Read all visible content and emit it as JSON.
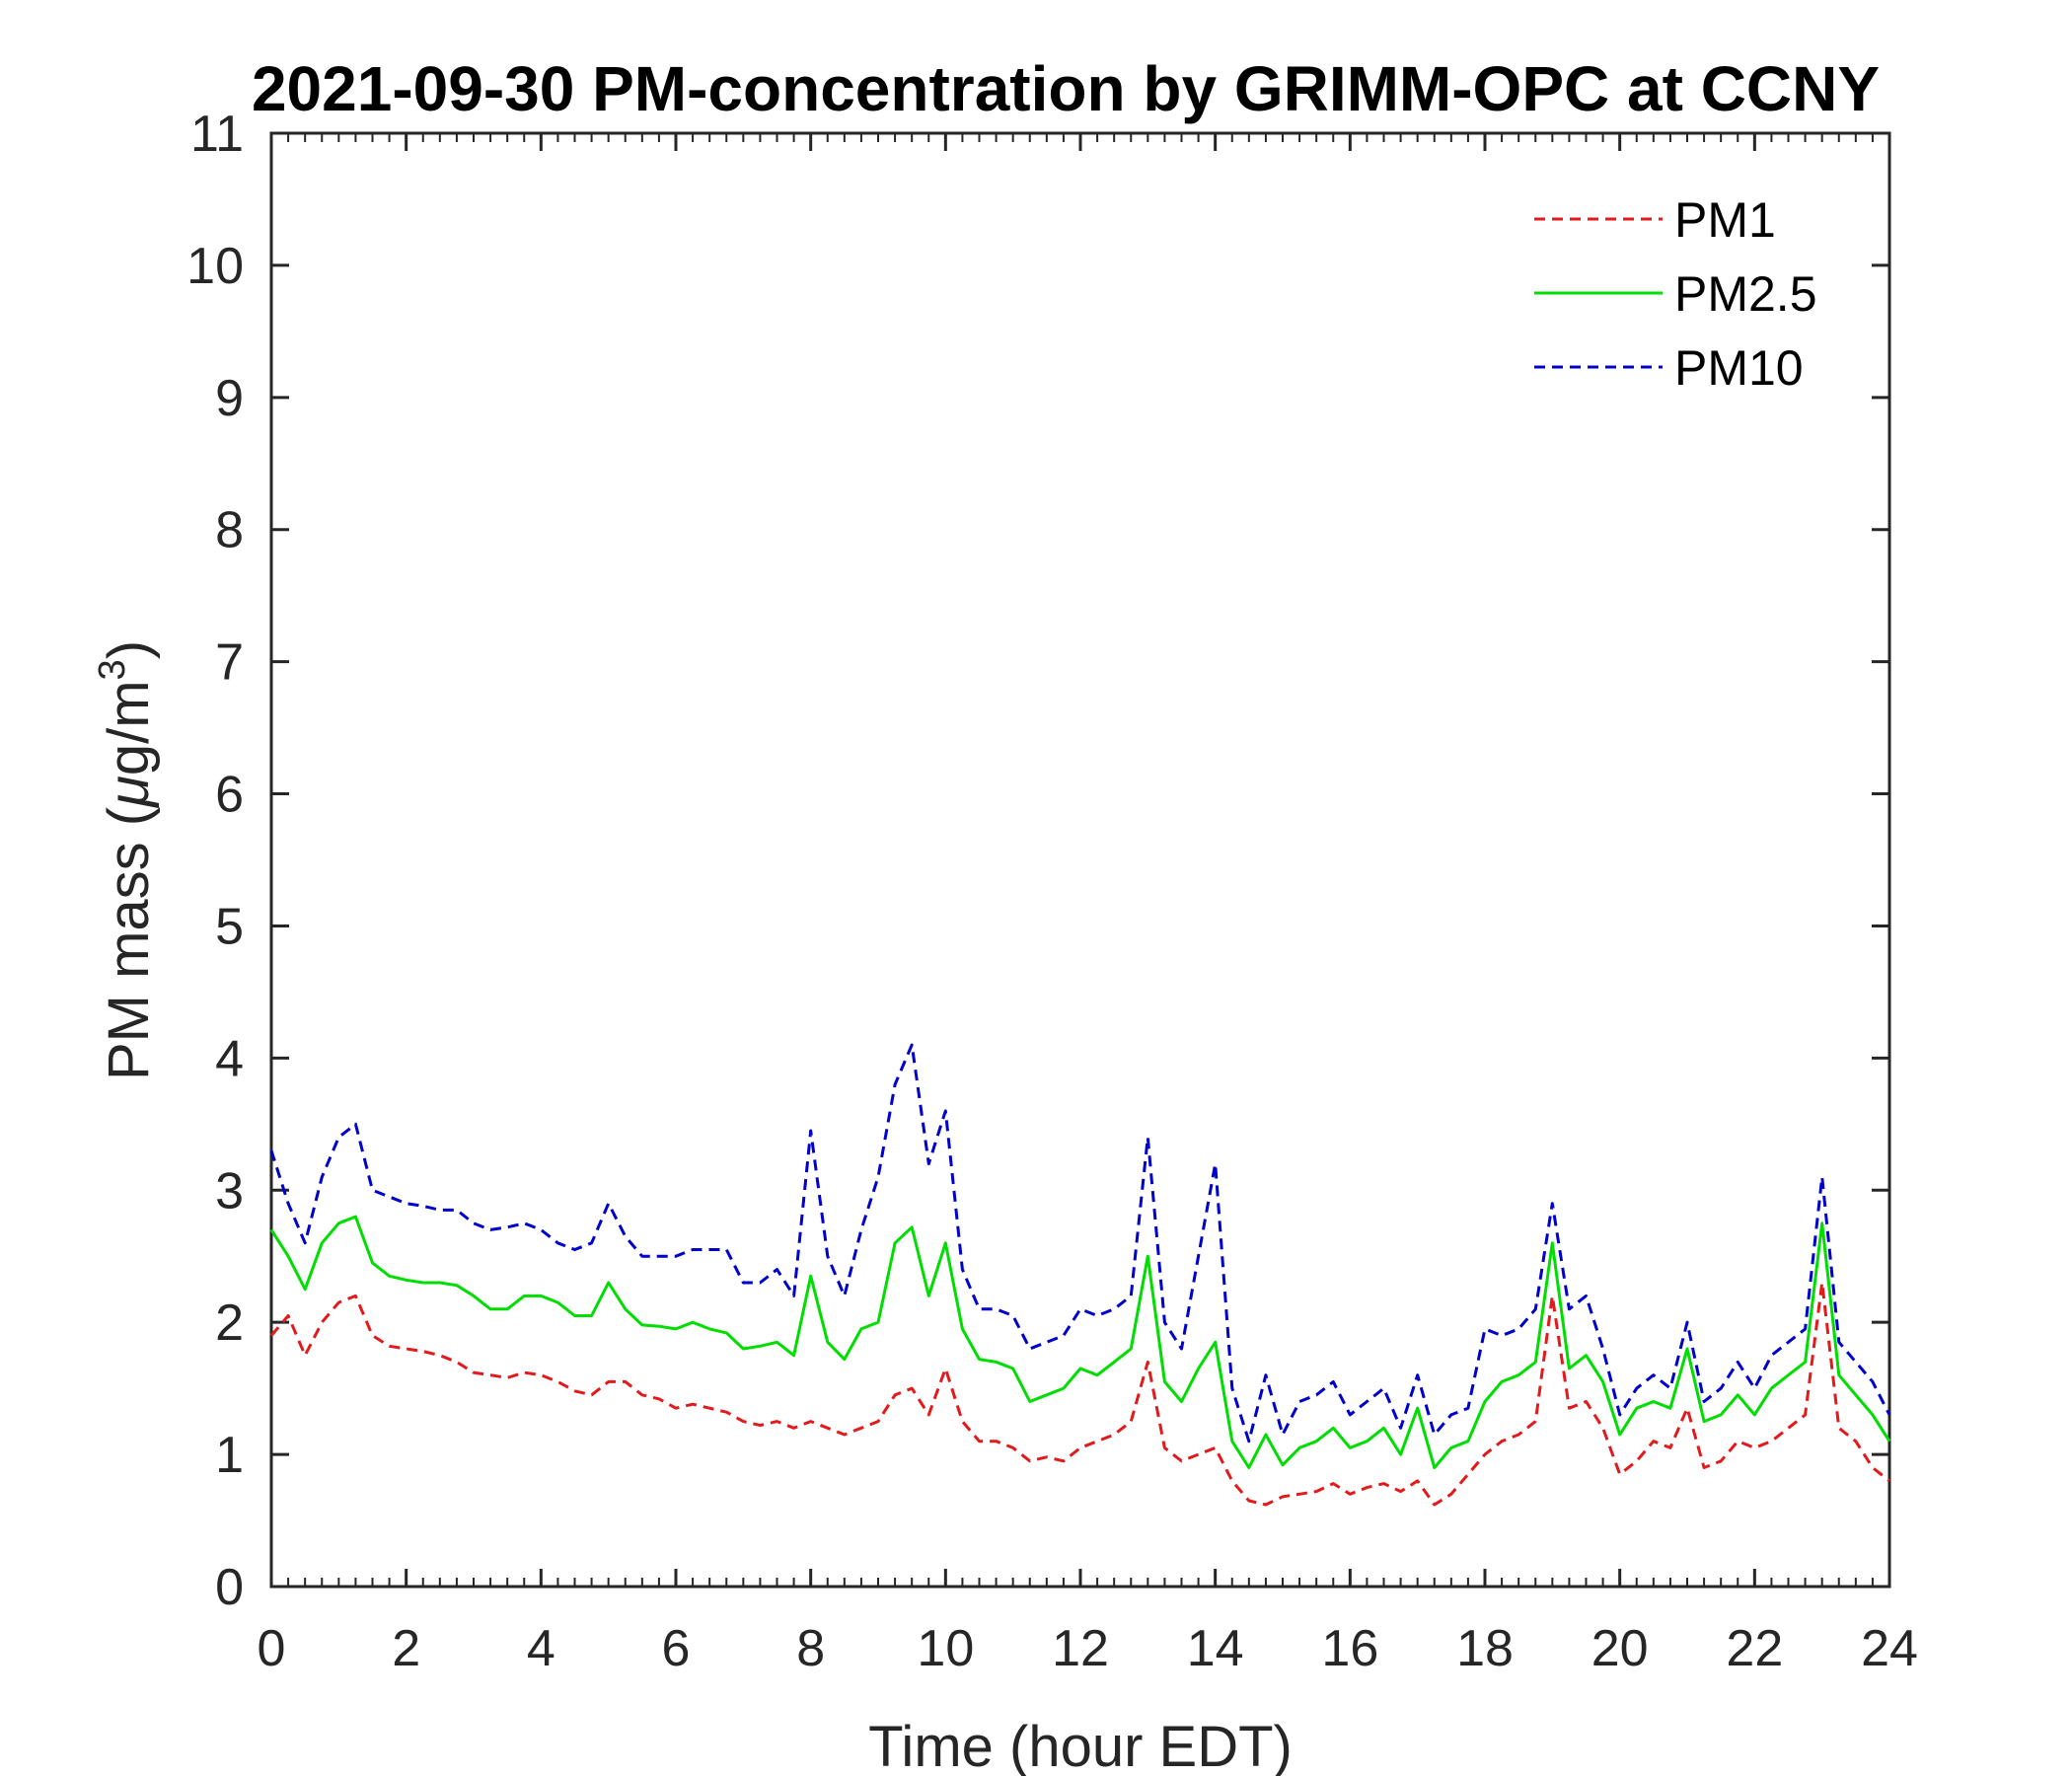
{
  "chart_data": {
    "type": "line",
    "title": "2021-09-30 PM-concentration by GRIMM-OPC at CCNY",
    "xlabel": "Time (hour EDT)",
    "ylabel": "PM mass (μg/m3)",
    "ylabel_parts": {
      "prefix": "PM mass (",
      "mu": "μ",
      "unit": "g/m",
      "sup": "3",
      "suffix": ")"
    },
    "xlim": [
      0,
      24
    ],
    "ylim": [
      0,
      11
    ],
    "xticks": [
      0,
      2,
      4,
      6,
      8,
      10,
      12,
      14,
      16,
      18,
      20,
      22,
      24
    ],
    "yticks": [
      0,
      1,
      2,
      3,
      4,
      5,
      6,
      7,
      8,
      9,
      10,
      11
    ],
    "grid": false,
    "legend_position": "top-right",
    "x": [
      0,
      0.25,
      0.5,
      0.75,
      1,
      1.25,
      1.5,
      1.75,
      2,
      2.25,
      2.5,
      2.75,
      3,
      3.25,
      3.5,
      3.75,
      4,
      4.25,
      4.5,
      4.75,
      5,
      5.25,
      5.5,
      5.75,
      6,
      6.25,
      6.5,
      6.75,
      7,
      7.25,
      7.5,
      7.75,
      8,
      8.25,
      8.5,
      8.75,
      9,
      9.25,
      9.5,
      9.75,
      10,
      10.25,
      10.5,
      10.75,
      11,
      11.25,
      11.5,
      11.75,
      12,
      12.25,
      12.5,
      12.75,
      13,
      13.25,
      13.5,
      13.75,
      14,
      14.25,
      14.5,
      14.75,
      15,
      15.25,
      15.5,
      15.75,
      16,
      16.25,
      16.5,
      16.75,
      17,
      17.25,
      17.5,
      17.75,
      18,
      18.25,
      18.5,
      18.75,
      19,
      19.25,
      19.5,
      19.75,
      20,
      20.25,
      20.5,
      20.75,
      21,
      21.25,
      21.5,
      21.75,
      22,
      22.25,
      22.5,
      22.75,
      23,
      23.25,
      23.5,
      23.75,
      24
    ],
    "series": [
      {
        "name": "PM1",
        "color": "#e31a1c",
        "dash": "dashed",
        "values": [
          1.9,
          2.05,
          1.75,
          2.0,
          2.15,
          2.2,
          1.9,
          1.82,
          1.8,
          1.78,
          1.75,
          1.7,
          1.62,
          1.6,
          1.58,
          1.62,
          1.6,
          1.55,
          1.48,
          1.45,
          1.55,
          1.55,
          1.45,
          1.42,
          1.35,
          1.38,
          1.35,
          1.32,
          1.25,
          1.22,
          1.25,
          1.2,
          1.25,
          1.2,
          1.15,
          1.2,
          1.25,
          1.45,
          1.5,
          1.3,
          1.65,
          1.25,
          1.1,
          1.1,
          1.05,
          0.95,
          0.98,
          0.95,
          1.05,
          1.1,
          1.15,
          1.25,
          1.7,
          1.05,
          0.95,
          1.0,
          1.05,
          0.8,
          0.65,
          0.62,
          0.68,
          0.7,
          0.72,
          0.78,
          0.7,
          0.75,
          0.78,
          0.72,
          0.8,
          0.62,
          0.7,
          0.85,
          1.0,
          1.1,
          1.15,
          1.25,
          2.2,
          1.35,
          1.4,
          1.2,
          0.85,
          0.95,
          1.1,
          1.05,
          1.35,
          0.9,
          0.95,
          1.1,
          1.05,
          1.1,
          1.2,
          1.3,
          2.3,
          1.2,
          1.1,
          0.9,
          0.8
        ]
      },
      {
        "name": "PM2.5",
        "color": "#00dd00",
        "dash": "solid",
        "values": [
          2.7,
          2.5,
          2.25,
          2.6,
          2.75,
          2.8,
          2.45,
          2.35,
          2.32,
          2.3,
          2.3,
          2.28,
          2.2,
          2.1,
          2.1,
          2.2,
          2.2,
          2.15,
          2.05,
          2.05,
          2.3,
          2.1,
          1.98,
          1.97,
          1.95,
          2.0,
          1.95,
          1.92,
          1.8,
          1.82,
          1.85,
          1.75,
          2.35,
          1.85,
          1.72,
          1.95,
          2.0,
          2.6,
          2.72,
          2.2,
          2.6,
          1.95,
          1.72,
          1.7,
          1.65,
          1.4,
          1.45,
          1.5,
          1.65,
          1.6,
          1.7,
          1.8,
          2.5,
          1.55,
          1.4,
          1.65,
          1.85,
          1.1,
          0.9,
          1.15,
          0.92,
          1.05,
          1.1,
          1.2,
          1.05,
          1.1,
          1.2,
          1.0,
          1.35,
          0.9,
          1.05,
          1.1,
          1.4,
          1.55,
          1.6,
          1.7,
          2.6,
          1.65,
          1.75,
          1.55,
          1.15,
          1.35,
          1.4,
          1.35,
          1.8,
          1.25,
          1.3,
          1.45,
          1.3,
          1.5,
          1.6,
          1.7,
          2.75,
          1.6,
          1.45,
          1.3,
          1.1
        ]
      },
      {
        "name": "PM10",
        "color": "#0000cc",
        "dash": "dashed",
        "values": [
          3.3,
          2.9,
          2.6,
          3.1,
          3.4,
          3.5,
          3.0,
          2.95,
          2.9,
          2.88,
          2.85,
          2.85,
          2.75,
          2.7,
          2.72,
          2.75,
          2.7,
          2.6,
          2.55,
          2.6,
          2.9,
          2.65,
          2.5,
          2.5,
          2.5,
          2.55,
          2.55,
          2.55,
          2.3,
          2.3,
          2.4,
          2.2,
          3.45,
          2.5,
          2.2,
          2.7,
          3.1,
          3.8,
          4.1,
          3.2,
          3.6,
          2.4,
          2.1,
          2.1,
          2.05,
          1.8,
          1.85,
          1.9,
          2.1,
          2.05,
          2.1,
          2.2,
          3.4,
          2.0,
          1.8,
          2.5,
          3.2,
          1.5,
          1.1,
          1.6,
          1.15,
          1.4,
          1.45,
          1.55,
          1.3,
          1.4,
          1.5,
          1.2,
          1.6,
          1.15,
          1.3,
          1.35,
          1.95,
          1.9,
          1.95,
          2.1,
          2.9,
          2.1,
          2.2,
          1.8,
          1.3,
          1.5,
          1.6,
          1.5,
          2.0,
          1.4,
          1.5,
          1.7,
          1.5,
          1.75,
          1.85,
          1.95,
          3.1,
          1.85,
          1.7,
          1.55,
          1.3
        ]
      }
    ]
  }
}
